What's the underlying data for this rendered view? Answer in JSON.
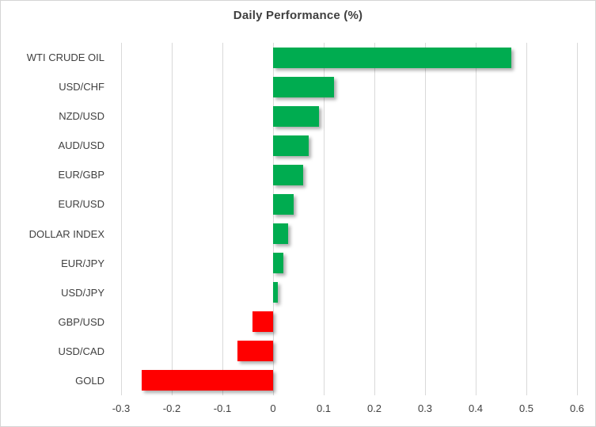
{
  "chart_data": {
    "type": "bar",
    "orientation": "horizontal",
    "title": "Daily Performance (%)",
    "categories": [
      "WTI CRUDE OIL",
      "USD/CHF",
      "NZD/USD",
      "AUD/USD",
      "EUR/GBP",
      "EUR/USD",
      "DOLLAR INDEX",
      "EUR/JPY",
      "USD/JPY",
      "GBP/USD",
      "USD/CAD",
      "GOLD"
    ],
    "values": [
      0.47,
      0.12,
      0.09,
      0.07,
      0.06,
      0.04,
      0.03,
      0.02,
      0.01,
      -0.04,
      -0.07,
      -0.26
    ],
    "x_tick_values": [
      -0.3,
      -0.2,
      -0.1,
      0,
      0.1,
      0.2,
      0.3,
      0.4,
      0.5,
      0.6
    ],
    "x_tick_labels": [
      "-0.3",
      "-0.2",
      "-0.1",
      "0",
      "0.1",
      "0.2",
      "0.3",
      "0.4",
      "0.5",
      "0.6"
    ],
    "xlim": [
      -0.3,
      0.6
    ],
    "grid": "vertical-only",
    "legend": "none",
    "xlabel": "",
    "ylabel": "",
    "colors": {
      "positive": "#00AC50",
      "negative": "#FF0000",
      "gridline": "#D9D9D9",
      "text": "#404040",
      "border": "#D5D5D5"
    }
  }
}
